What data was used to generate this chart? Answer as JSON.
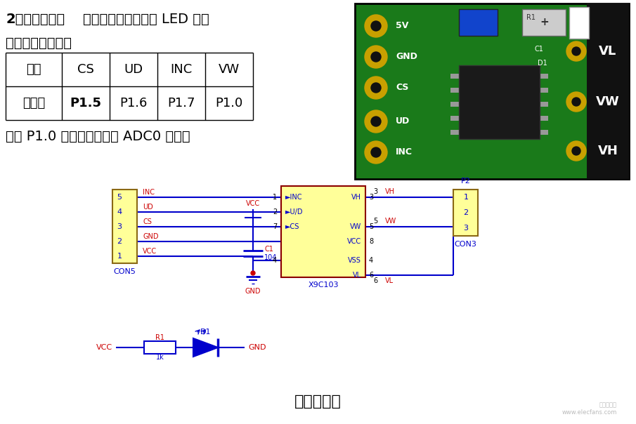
{
  "bg_color": "#ffffff",
  "title_text": "模块原理图",
  "heading_bold": "2、模块说明：",
  "heading_normal": "模块上搭载电源指示 LED 灯，",
  "heading2": "与单片机连接关系",
  "adc_text": "其中 P1.0 为模数轮换接口 ADC0 通道。",
  "table_headers": [
    "模块",
    "CS",
    "UD",
    "INC",
    "VW"
  ],
  "table_row1_label": "单片机",
  "table_row1_data": [
    "P1.5",
    "P1.6",
    "P1.7",
    "P1.0"
  ],
  "blue": "#0000cc",
  "red": "#cc0000",
  "dark_red_border": "#8B0000",
  "gold_border": "#8B6914",
  "light_yellow": "#FFFF99",
  "pcb_green": "#1a7a1a",
  "pcb_gold": "#c8a000",
  "black": "#000000",
  "white": "#ffffff",
  "gray_watermark": "#aaaaaa",
  "watermark_text": "电子发烧友\nwww.elecfans.com"
}
